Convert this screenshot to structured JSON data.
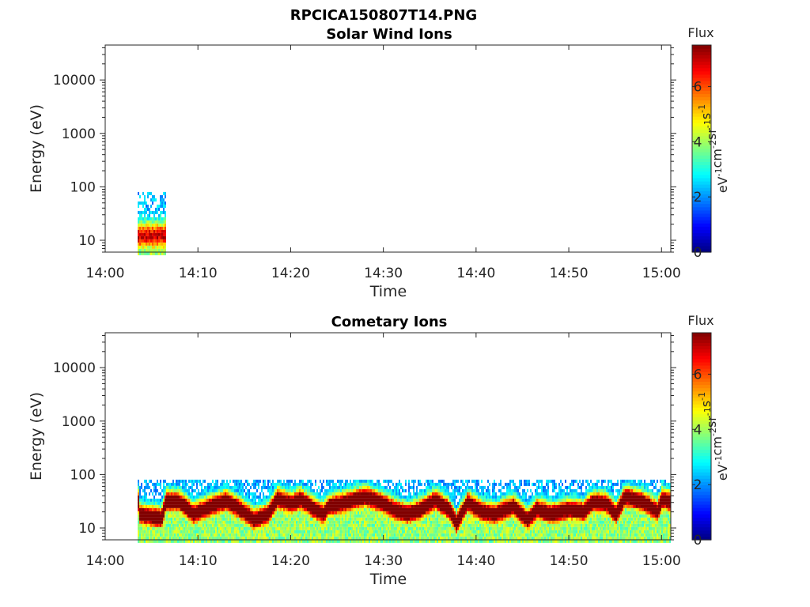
{
  "figure_title": "RPCICA150807T14.PNG",
  "chart_data": [
    {
      "type": "heatmap",
      "title": "Solar Wind Ions",
      "xlabel": "Time",
      "ylabel": "Energy (eV)",
      "x_ticks": [
        "14:00",
        "14:10",
        "14:20",
        "14:30",
        "14:40",
        "14:50",
        "15:00"
      ],
      "y_ticks": [
        10,
        100,
        1000,
        10000
      ],
      "y_scale": "log",
      "xlim": [
        "14:00",
        "15:01"
      ],
      "ylim": [
        6,
        45000
      ],
      "colorbar": {
        "label": "Flux",
        "units": "eV",
        "units_sup": "-1",
        "units2": "cm",
        "units_sup2": "-2",
        "units3": "sr",
        "units_sup3": "-1",
        "units4": "s",
        "units_sup4": "-1",
        "ticks": [
          0,
          2,
          4,
          6
        ],
        "range": [
          0,
          7.5
        ],
        "colormap": "jet"
      },
      "features": [
        {
          "t_start": "14:03.5",
          "t_end": "14:06.5",
          "e_low": 6,
          "e_high": 80,
          "peak_energy": 12,
          "peak_flux": 4.8,
          "width_decades": 0.25
        }
      ]
    },
    {
      "type": "heatmap",
      "title": "Cometary Ions",
      "xlabel": "Time",
      "ylabel": "Energy (eV)",
      "x_ticks": [
        "14:00",
        "14:10",
        "14:20",
        "14:30",
        "14:40",
        "14:50",
        "15:00"
      ],
      "y_ticks": [
        10,
        100,
        1000,
        10000
      ],
      "y_scale": "log",
      "xlim": [
        "14:00",
        "15:01"
      ],
      "ylim": [
        6,
        45000
      ],
      "colorbar": {
        "label": "Flux",
        "units": "eV",
        "units_sup": "-1",
        "units2": "cm",
        "units_sup2": "-2",
        "units3": "sr",
        "units_sup3": "-1",
        "units4": "s",
        "units_sup4": "-1",
        "ticks": [
          0,
          2,
          4,
          6
        ],
        "range": [
          0,
          7.5
        ],
        "colormap": "jet"
      },
      "data_start": "14:03.5",
      "data_end": "15:01",
      "e_low": 6,
      "e_high": 80,
      "peak_flux": 7.2,
      "peak_energy_trace": [
        [
          3.5,
          18
        ],
        [
          6.0,
          15
        ],
        [
          6.5,
          32
        ],
        [
          8.0,
          30
        ],
        [
          9.5,
          18
        ],
        [
          11.0,
          24
        ],
        [
          13.0,
          32
        ],
        [
          14.5,
          22
        ],
        [
          16.0,
          14
        ],
        [
          17.5,
          18
        ],
        [
          18.5,
          35
        ],
        [
          20.0,
          28
        ],
        [
          21.0,
          34
        ],
        [
          22.5,
          22
        ],
        [
          23.5,
          18
        ],
        [
          24.0,
          25
        ],
        [
          26.0,
          30
        ],
        [
          28.0,
          38
        ],
        [
          30.0,
          28
        ],
        [
          31.0,
          22
        ],
        [
          32.5,
          18
        ],
        [
          34.0,
          22
        ],
        [
          35.5,
          33
        ],
        [
          37.0,
          22
        ],
        [
          37.8,
          12
        ],
        [
          39.0,
          30
        ],
        [
          40.5,
          20
        ],
        [
          42.0,
          18
        ],
        [
          44.0,
          25
        ],
        [
          45.5,
          14
        ],
        [
          46.5,
          22
        ],
        [
          48.0,
          18
        ],
        [
          50.0,
          22
        ],
        [
          51.5,
          20
        ],
        [
          52.5,
          30
        ],
        [
          54.0,
          28
        ],
        [
          55.0,
          18
        ],
        [
          56.0,
          38
        ],
        [
          58.0,
          30
        ],
        [
          59.5,
          20
        ],
        [
          60.0,
          35
        ],
        [
          61.0,
          30
        ]
      ]
    }
  ]
}
